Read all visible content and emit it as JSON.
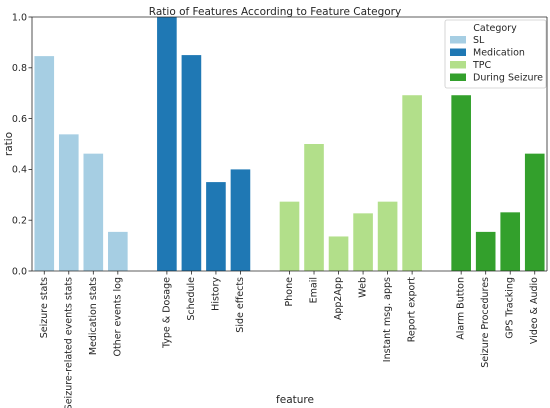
{
  "chart_data": {
    "type": "bar",
    "title": "Ratio of Features According to Feature Category",
    "xlabel": "feature",
    "ylabel": "ratio",
    "ylim": [
      0,
      1.0
    ],
    "yticks": [
      "0.0",
      "0.2",
      "0.4",
      "0.6",
      "0.8",
      "1.0"
    ],
    "grid": false,
    "legend": {
      "title": "Category",
      "placement": "top-right",
      "entries": [
        {
          "name": "SL",
          "color": "#a6cee3"
        },
        {
          "name": "Medication",
          "color": "#1f78b4"
        },
        {
          "name": "TPC",
          "color": "#b2df8a"
        },
        {
          "name": "During Seizure",
          "color": "#33a02c"
        }
      ]
    },
    "groups": [
      {
        "name": "SL",
        "color": "#a6cee3",
        "categories": [
          "Seizure stats",
          "Seizure-related events stats",
          "Medication stats",
          "Other events log"
        ],
        "values": [
          0.846,
          0.538,
          0.462,
          0.154
        ]
      },
      {
        "name": "Medication",
        "color": "#1f78b4",
        "categories": [
          "Type & Dosage",
          "Schedule",
          "History",
          "Side effects"
        ],
        "values": [
          1.0,
          0.85,
          0.35,
          0.4
        ]
      },
      {
        "name": "TPC",
        "color": "#b2df8a",
        "categories": [
          "Phone",
          "Email",
          "App2App",
          "Web",
          "Instant msg. apps",
          "Report export"
        ],
        "values": [
          0.273,
          0.5,
          0.136,
          0.227,
          0.273,
          0.692
        ]
      },
      {
        "name": "During Seizure",
        "color": "#33a02c",
        "categories": [
          "Alarm Button",
          "Seizure Procedures",
          "GPS Tracking",
          "Video & Audio"
        ],
        "values": [
          0.692,
          0.154,
          0.231,
          0.462
        ]
      }
    ]
  }
}
